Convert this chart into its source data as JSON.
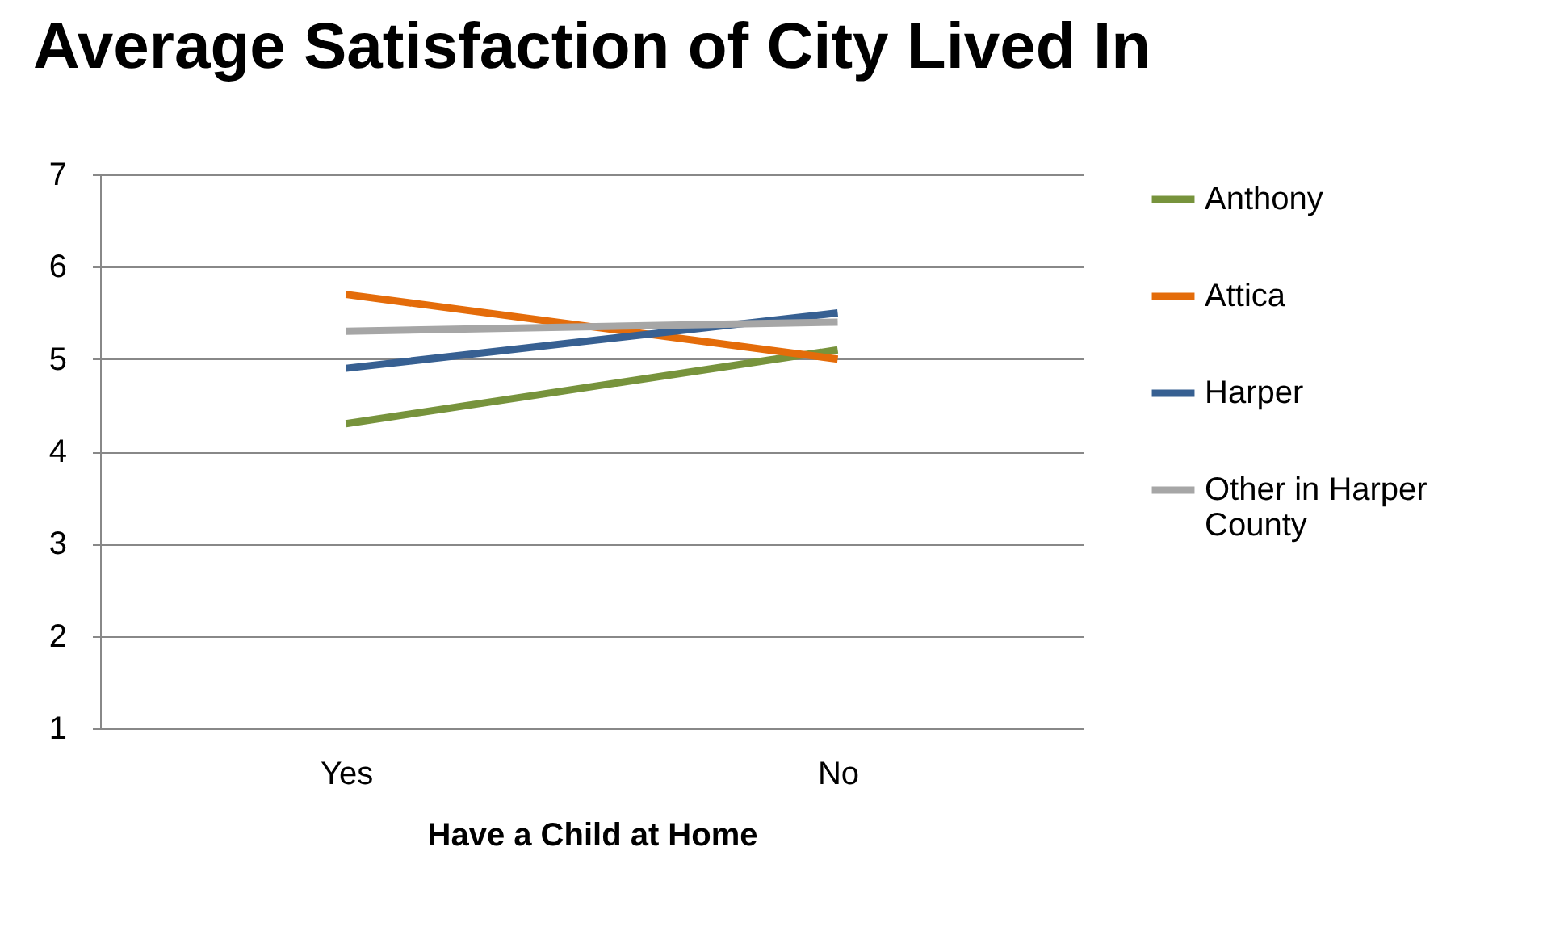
{
  "chart_data": {
    "type": "line",
    "title": "Average Satisfaction of City Lived In",
    "xlabel": "Have a Child at Home",
    "categories": [
      "Yes",
      "No"
    ],
    "series": [
      {
        "name": "Anthony",
        "color": "#77933c",
        "values": [
          4.3,
          5.1
        ]
      },
      {
        "name": "Attica",
        "color": "#e46c0a",
        "values": [
          5.7,
          5.0
        ]
      },
      {
        "name": "Harper",
        "color": "#376092",
        "values": [
          4.9,
          5.5
        ]
      },
      {
        "name": "Other in Harper County",
        "color": "#a6a6a6",
        "values": [
          5.3,
          5.4
        ]
      }
    ],
    "ylim": [
      1,
      7
    ],
    "yticks": [
      1,
      2,
      3,
      4,
      5,
      6,
      7
    ],
    "grid": "y",
    "legend": "right",
    "line_style": "solid",
    "marker": "none"
  }
}
